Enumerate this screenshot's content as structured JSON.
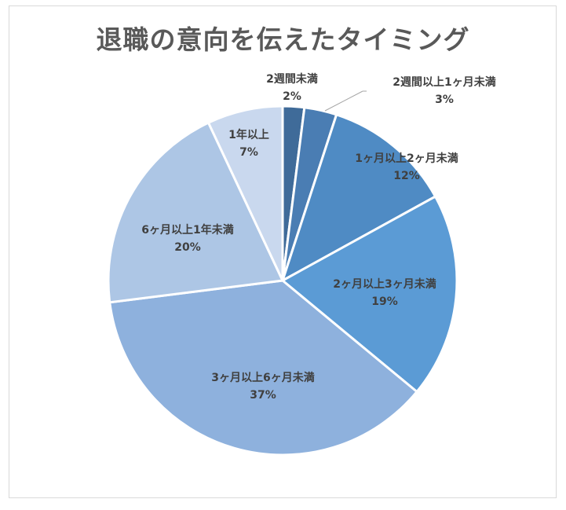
{
  "chart_data": {
    "type": "pie",
    "title": "退職の意向を伝えたタイミング",
    "start_angle_deg": 0,
    "direction": "clockwise",
    "categories": [
      "2週間未満",
      "2週間以上1ヶ月未満",
      "1ヶ月以上2ヶ月未満",
      "2ヶ月以上3ヶ月未満",
      "3ヶ月以上6ヶ月未満",
      "6ヶ月以上1年未満",
      "1年以上"
    ],
    "values": [
      2,
      3,
      12,
      19,
      37,
      20,
      7
    ],
    "value_labels": [
      "2%",
      "3%",
      "12%",
      "19%",
      "37%",
      "20%",
      "7%"
    ],
    "colors": [
      "#3F6B99",
      "#4A7DB3",
      "#4F8BC4",
      "#5B9BD5",
      "#8EB1DD",
      "#ADC6E5",
      "#C9D8EE"
    ],
    "legend": "none (data labels with category name and percentage)"
  },
  "title": "退職の意向を伝えたタイミング",
  "labels": [
    {
      "name": "2週間未満",
      "pct": "2%"
    },
    {
      "name": "2週間以上1ヶ月未満",
      "pct": "3%"
    },
    {
      "name": "1ヶ月以上2ヶ月未満",
      "pct": "12%"
    },
    {
      "name": "2ヶ月以上3ヶ月未満",
      "pct": "19%"
    },
    {
      "name": "3ヶ月以上6ヶ月未満",
      "pct": "37%"
    },
    {
      "name": "6ヶ月以上1年未満",
      "pct": "20%"
    },
    {
      "name": "1年以上",
      "pct": "7%"
    }
  ]
}
